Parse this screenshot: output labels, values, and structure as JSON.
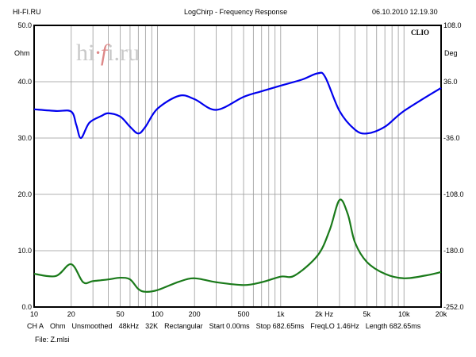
{
  "header": {
    "left": "HI-FI.RU",
    "title": "LogChirp - Frequency Response",
    "datetime": "06.10.2010 12.19.30"
  },
  "watermark": "hi·fi.ru",
  "brand": "CLIO",
  "footer": {
    "params": [
      "CH A",
      "Ohm",
      "Unsmoothed",
      "48kHz",
      "32K",
      "Rectangular",
      "Start 0.00ms",
      "Stop 682.65ms",
      "FreqLO 1.46Hz",
      "Length 682.65ms"
    ],
    "file": "File: Z.mlsi"
  },
  "colors": {
    "impedance": "#1a7a1a",
    "phase": "#0000ee"
  },
  "chart_data": {
    "type": "line",
    "title": "LogChirp - Frequency Response",
    "xlabel": "Hz",
    "ylabel": "Ohm",
    "y2label": "Deg",
    "xscale": "log",
    "xlim": [
      10,
      20000
    ],
    "ylim": [
      0,
      50
    ],
    "y2lim": [
      -252,
      108
    ],
    "grid": true,
    "x_ticks": [
      "10",
      "20",
      "50",
      "100",
      "200",
      "500",
      "1k",
      "2k Hz",
      "5k",
      "10k",
      "20k"
    ],
    "x_tick_values": [
      10,
      20,
      50,
      100,
      200,
      500,
      1000,
      2000,
      5000,
      10000,
      20000
    ],
    "y_ticks": [
      "0.0",
      "10.0",
      "20.0",
      "30.0",
      "40.0",
      "50.0"
    ],
    "y2_ticks": [
      "-252.0",
      "-180.0",
      "-108.0",
      "-36.0",
      "36.0",
      "108.0"
    ],
    "series": [
      {
        "name": "Impedance",
        "axis": "left",
        "unit": "Ohm",
        "x": [
          10,
          15,
          20,
          25,
          30,
          40,
          50,
          60,
          70,
          80,
          100,
          150,
          200,
          300,
          500,
          700,
          1000,
          1300,
          2000,
          2500,
          3000,
          3500,
          4000,
          5000,
          7000,
          10000,
          15000,
          20000
        ],
        "y": [
          5.9,
          5.5,
          7.6,
          4.4,
          4.6,
          4.9,
          5.2,
          4.9,
          3.2,
          2.7,
          3.0,
          4.5,
          5.1,
          4.4,
          3.9,
          4.4,
          5.4,
          5.6,
          9.2,
          13.7,
          19.0,
          16.5,
          11.5,
          8.0,
          5.9,
          5.1,
          5.6,
          6.2
        ]
      },
      {
        "name": "Phase",
        "axis": "right",
        "unit": "Deg",
        "x": [
          10,
          15,
          20,
          22,
          24,
          28,
          35,
          40,
          50,
          60,
          70,
          80,
          100,
          150,
          200,
          300,
          500,
          700,
          1000,
          1500,
          2000,
          2300,
          3000,
          4000,
          5000,
          7000,
          10000,
          20000
        ],
        "y": [
          0.7,
          -1.4,
          -2.2,
          -19.4,
          -36.0,
          -16.6,
          -7.9,
          -4.3,
          -8.6,
          -21.6,
          -30.2,
          -21.6,
          1.4,
          18.0,
          13.7,
          0.0,
          16.6,
          23.8,
          31.0,
          38.9,
          46.8,
          41.8,
          -1.4,
          -25.2,
          -30.2,
          -21.6,
          -1.4,
          28.1
        ]
      }
    ]
  }
}
